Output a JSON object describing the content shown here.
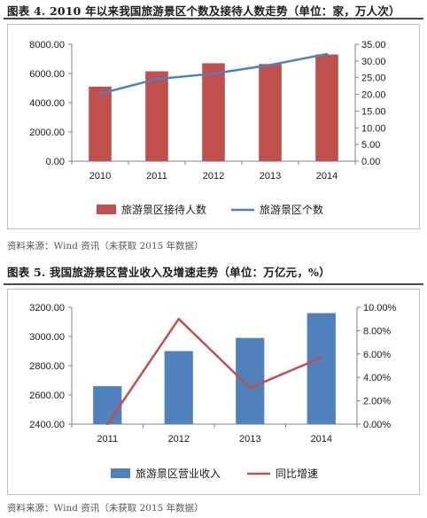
{
  "figure4": {
    "title": "图表 4. 2010 年以来我国旅游景区个数及接待人数走势（单位：家，万人次）",
    "source": "资料来源：Wind 资讯（未获取 2015 年数据）"
  },
  "figure5": {
    "title": "图表 5. 我国旅游景区营业收入及增速走势（单位：万亿元，%）",
    "source": "资料来源：Wind 资讯（未获取 2015 年数据）"
  },
  "chart_data": [
    {
      "type": "bar",
      "categories": [
        "2010",
        "2011",
        "2012",
        "2013",
        "2014"
      ],
      "series": [
        {
          "name": "旅游景区接待人数",
          "type": "bar",
          "axis": "left",
          "values": [
            5100,
            6150,
            6700,
            6650,
            7300
          ],
          "color": "#c0504d"
        },
        {
          "name": "旅游景区个数",
          "type": "line",
          "axis": "right",
          "values": [
            20.2,
            24.6,
            26.2,
            28.8,
            32.1
          ],
          "color": "#4f81bd"
        }
      ],
      "y_left": {
        "ticks": [
          "0.00",
          "2000.00",
          "4000.00",
          "6000.00",
          "8000.00"
        ],
        "ylim": [
          0,
          8000
        ]
      },
      "y_right": {
        "ticks": [
          "0.00",
          "5.00",
          "10.00",
          "15.00",
          "20.00",
          "25.00",
          "30.00",
          "35.00"
        ],
        "ylim": [
          0,
          35
        ]
      },
      "grid": false,
      "legend": "bottom"
    },
    {
      "type": "bar",
      "categories": [
        "2011",
        "2012",
        "2013",
        "2014"
      ],
      "series": [
        {
          "name": "旅游景区营业收入",
          "type": "bar",
          "axis": "left",
          "values": [
            2660,
            2900,
            2990,
            3160
          ],
          "color": "#4f81bd"
        },
        {
          "name": "同比增速",
          "type": "line",
          "axis": "right",
          "values": [
            0.0,
            9.0,
            3.1,
            5.7
          ],
          "color": "#c0504d"
        }
      ],
      "y_left": {
        "ticks": [
          "2400.00",
          "2600.00",
          "2800.00",
          "3000.00",
          "3200.00"
        ],
        "ylim": [
          2400,
          3200
        ]
      },
      "y_right": {
        "ticks": [
          "0.00%",
          "2.00%",
          "4.00%",
          "6.00%",
          "8.00%",
          "10.00%"
        ],
        "ylim": [
          0,
          10
        ]
      },
      "grid": false,
      "legend": "bottom"
    }
  ]
}
